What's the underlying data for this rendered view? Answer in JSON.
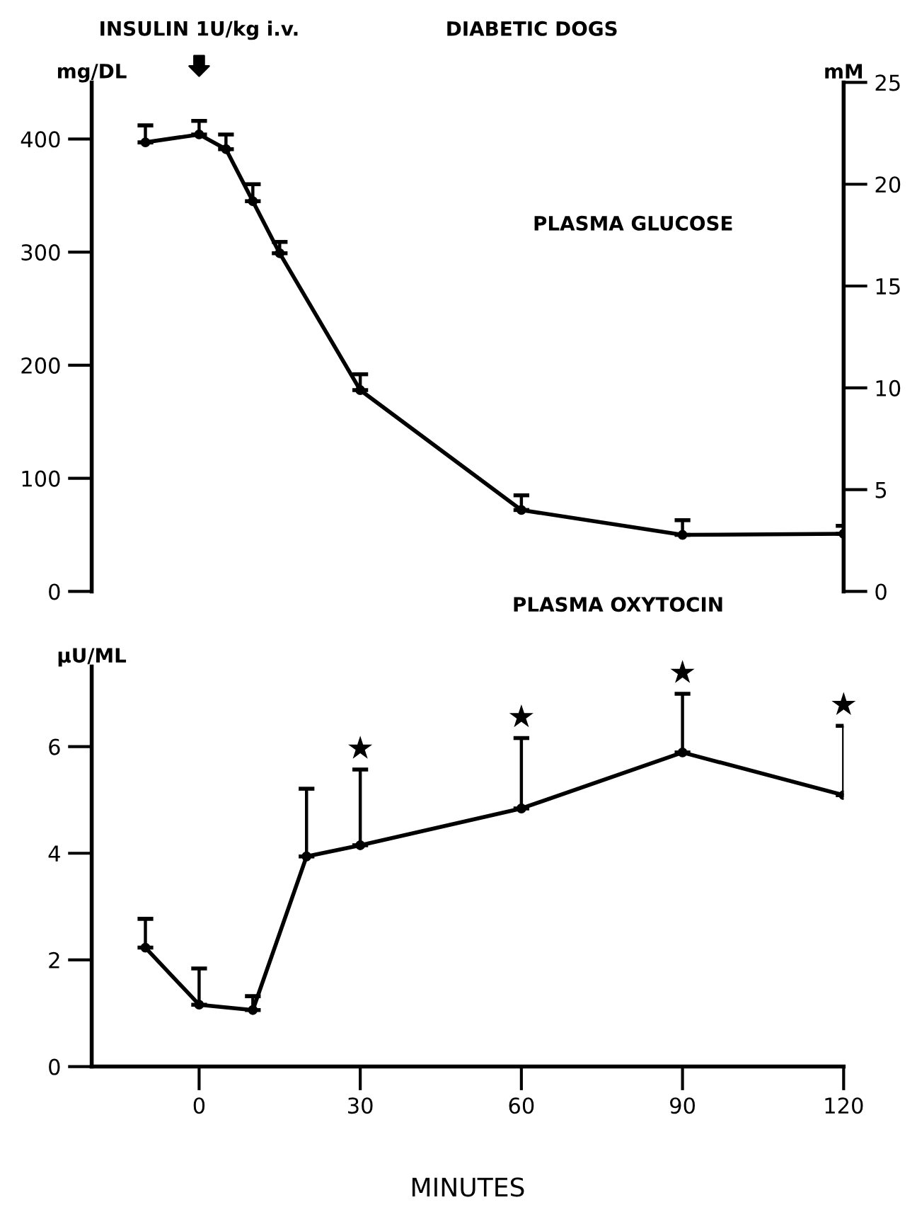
{
  "chart_data": [
    {
      "type": "line",
      "title": "DIABETIC DOGS",
      "ylabel": "mg/DL",
      "y2label": "mM",
      "annotations": [
        "INSULIN 1U/kg i.v.",
        "PLASMA GLUCOSE"
      ],
      "xlim": [
        -20,
        120
      ],
      "ylim": [
        0,
        450
      ],
      "yticks": [
        0,
        100,
        200,
        300,
        400
      ],
      "y2lim": [
        0,
        25
      ],
      "y2ticks": [
        0,
        5,
        10,
        15,
        20,
        25
      ],
      "tick_labels": "y",
      "marker": "circle",
      "line_style": "solid",
      "series": [
        {
          "color": "#000000",
          "x": [
            -10,
            0,
            5,
            10,
            15,
            30,
            60,
            90,
            120
          ],
          "values": [
            397,
            404,
            391,
            345,
            299,
            178,
            72,
            50,
            51
          ],
          "errors": [
            [
              397,
              412
            ],
            [
              404,
              416
            ],
            [
              391,
              404
            ],
            [
              345,
              360
            ],
            [
              299,
              309
            ],
            [
              178,
              192
            ],
            [
              72,
              85
            ],
            [
              50,
              63
            ],
            [
              51,
              58
            ]
          ]
        }
      ]
    },
    {
      "type": "line",
      "title": "PLASMA OXYTOCIN",
      "xlabel": "MINUTES",
      "ylabel": "µU/ML",
      "annotations": [
        "★",
        "★",
        "★",
        "★"
      ],
      "xlim": [
        -20,
        120
      ],
      "xticks": [
        0,
        30,
        60,
        90,
        120
      ],
      "ylim": [
        0,
        7.5
      ],
      "yticks": [
        0,
        2,
        4,
        6
      ],
      "marker": "circle",
      "line_style": "solid",
      "series": [
        {
          "color": "#000000",
          "x": [
            -10,
            0,
            10,
            20,
            30,
            60,
            90,
            120
          ],
          "values": [
            2.23,
            1.16,
            1.06,
            3.94,
            4.15,
            4.84,
            5.89,
            5.09
          ],
          "errors": [
            [
              2.23,
              2.77
            ],
            [
              1.16,
              1.84
            ],
            [
              1.06,
              1.32
            ],
            [
              3.94,
              5.21
            ],
            [
              4.15,
              5.57
            ],
            [
              4.84,
              6.16
            ],
            [
              5.89,
              6.99
            ],
            [
              5.09,
              6.39
            ]
          ]
        }
      ]
    }
  ]
}
